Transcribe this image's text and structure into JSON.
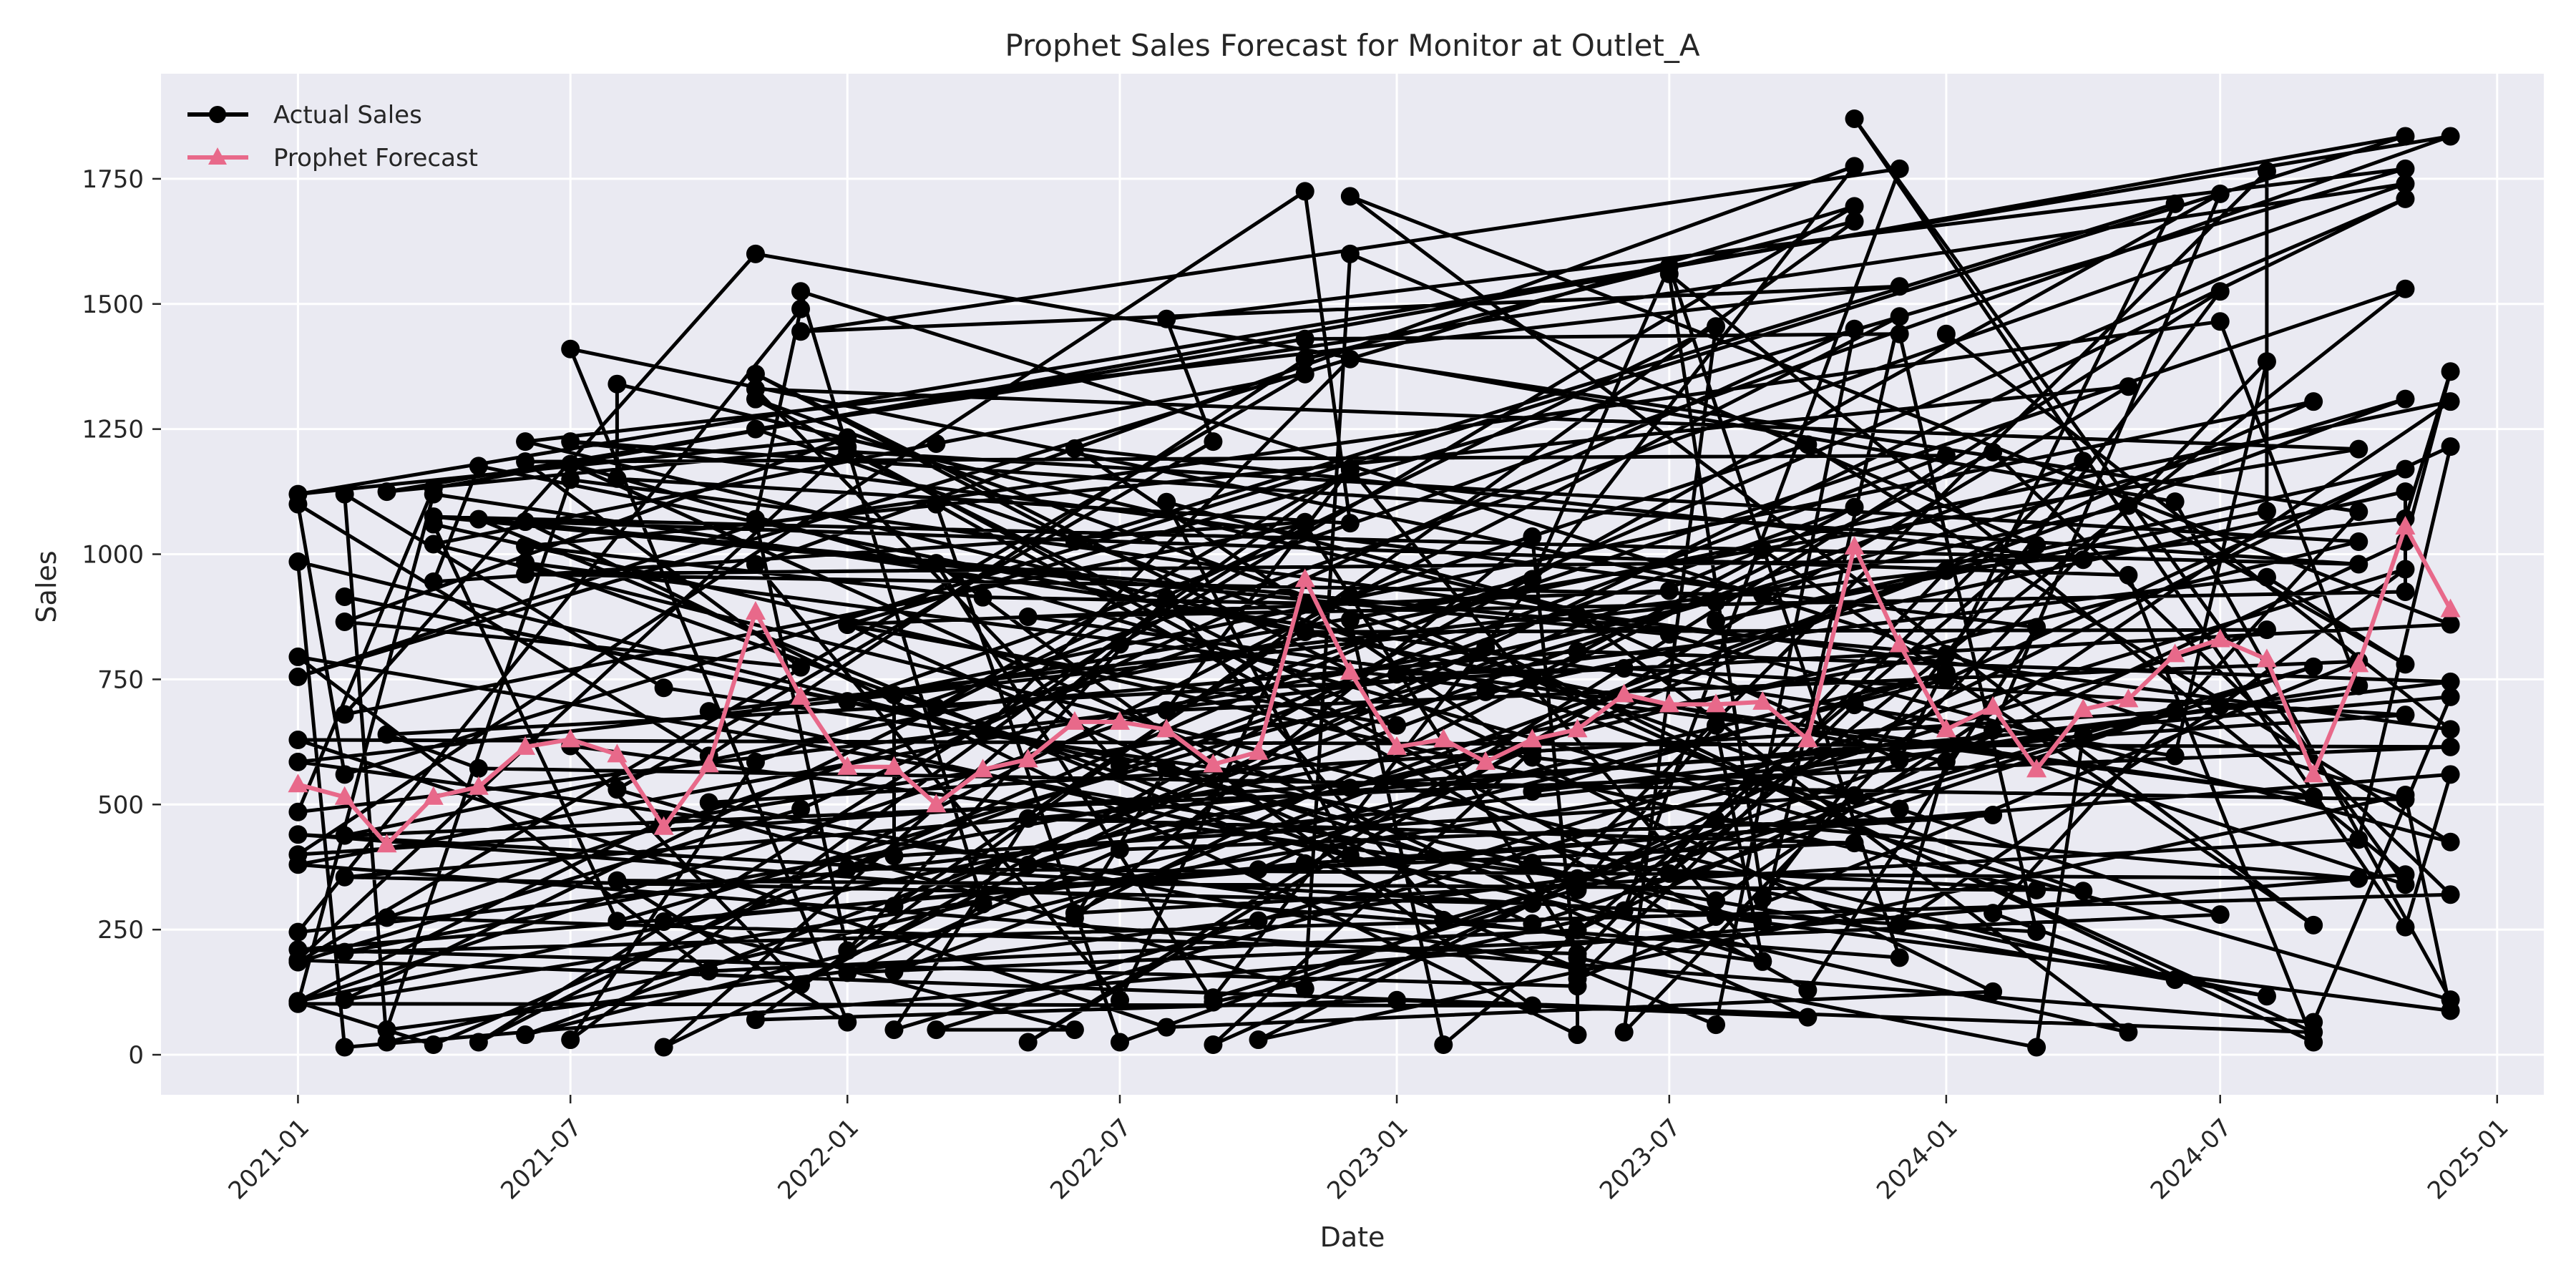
{
  "chart_data": {
    "type": "line",
    "title": "Prophet Sales Forecast for Monitor at Outlet_A",
    "xlabel": "Date",
    "ylabel": "Sales",
    "xlim": [
      "2020-10-02",
      "2025-02-01"
    ],
    "ylim": [
      -80,
      1960
    ],
    "x_ticks": [
      "2021-01",
      "2021-07",
      "2022-01",
      "2022-07",
      "2023-01",
      "2023-07",
      "2024-01",
      "2024-07",
      "2025-01"
    ],
    "y_ticks": [
      0,
      250,
      500,
      750,
      1000,
      1250,
      1500,
      1750
    ],
    "grid": true,
    "legend_position": "upper-left",
    "colors": {
      "actual": "#000000",
      "forecast": "#e8698a",
      "background": "#eaeaf2",
      "grid": "#ffffff"
    },
    "series": [
      {
        "name": "Actual Sales",
        "marker": "circle",
        "seed": 20210101,
        "extra_segments": 180,
        "points": [
          {
            "x": "2021-01-01",
            "y": 1120
          },
          {
            "x": "2021-01-01",
            "y": 1100
          },
          {
            "x": "2021-01-01",
            "y": 985
          },
          {
            "x": "2021-01-01",
            "y": 795
          },
          {
            "x": "2021-01-01",
            "y": 755
          },
          {
            "x": "2021-01-01",
            "y": 585
          },
          {
            "x": "2021-01-01",
            "y": 485
          },
          {
            "x": "2021-01-01",
            "y": 440
          },
          {
            "x": "2021-01-01",
            "y": 400
          },
          {
            "x": "2021-01-01",
            "y": 380
          },
          {
            "x": "2021-01-01",
            "y": 245
          },
          {
            "x": "2021-01-01",
            "y": 210
          },
          {
            "x": "2021-01-01",
            "y": 185
          },
          {
            "x": "2021-01-01",
            "y": 105
          },
          {
            "x": "2021-02-01",
            "y": 1120
          },
          {
            "x": "2021-02-01",
            "y": 915
          },
          {
            "x": "2021-02-01",
            "y": 865
          },
          {
            "x": "2021-02-01",
            "y": 680
          },
          {
            "x": "2021-02-01",
            "y": 560
          },
          {
            "x": "2021-02-01",
            "y": 355
          },
          {
            "x": "2021-02-01",
            "y": 205
          },
          {
            "x": "2021-02-01",
            "y": 110
          },
          {
            "x": "2021-02-01",
            "y": 15
          },
          {
            "x": "2021-03-01",
            "y": 1125
          },
          {
            "x": "2021-03-01",
            "y": 50
          },
          {
            "x": "2021-03-01",
            "y": 25
          },
          {
            "x": "2021-04-01",
            "y": 1120
          },
          {
            "x": "2021-04-01",
            "y": 1075
          },
          {
            "x": "2021-04-01",
            "y": 1060
          },
          {
            "x": "2021-04-01",
            "y": 1020
          },
          {
            "x": "2021-04-01",
            "y": 945
          },
          {
            "x": "2021-04-01",
            "y": 20
          },
          {
            "x": "2021-05-01",
            "y": 1070
          },
          {
            "x": "2021-05-01",
            "y": 25
          },
          {
            "x": "2021-06-01",
            "y": 1225
          },
          {
            "x": "2021-06-01",
            "y": 1185
          },
          {
            "x": "2021-06-01",
            "y": 1065
          },
          {
            "x": "2021-06-01",
            "y": 960
          },
          {
            "x": "2021-06-01",
            "y": 40
          },
          {
            "x": "2021-07-01",
            "y": 1410
          },
          {
            "x": "2021-07-01",
            "y": 1225
          },
          {
            "x": "2021-07-01",
            "y": 1180
          },
          {
            "x": "2021-07-01",
            "y": 30
          },
          {
            "x": "2021-08-01",
            "y": 1340
          },
          {
            "x": "2021-09-01",
            "y": 15
          },
          {
            "x": "2021-11-01",
            "y": 1600
          },
          {
            "x": "2021-11-01",
            "y": 1360
          },
          {
            "x": "2021-11-01",
            "y": 1330
          },
          {
            "x": "2021-11-01",
            "y": 1310
          },
          {
            "x": "2021-11-01",
            "y": 1250
          },
          {
            "x": "2021-11-01",
            "y": 70
          },
          {
            "x": "2021-12-01",
            "y": 1525
          },
          {
            "x": "2021-12-01",
            "y": 1490
          },
          {
            "x": "2021-12-01",
            "y": 1445
          },
          {
            "x": "2022-01-01",
            "y": 65
          },
          {
            "x": "2022-02-01",
            "y": 50
          },
          {
            "x": "2022-03-01",
            "y": 50
          },
          {
            "x": "2022-05-01",
            "y": 25
          },
          {
            "x": "2022-06-01",
            "y": 50
          },
          {
            "x": "2022-07-01",
            "y": 25
          },
          {
            "x": "2022-08-01",
            "y": 1470
          },
          {
            "x": "2022-08-01",
            "y": 55
          },
          {
            "x": "2022-09-01",
            "y": 20
          },
          {
            "x": "2022-10-01",
            "y": 30
          },
          {
            "x": "2022-11-01",
            "y": 1725
          },
          {
            "x": "2022-11-01",
            "y": 1430
          },
          {
            "x": "2022-11-01",
            "y": 1390
          },
          {
            "x": "2022-11-01",
            "y": 1360
          },
          {
            "x": "2022-12-01",
            "y": 1715
          },
          {
            "x": "2022-12-01",
            "y": 1600
          },
          {
            "x": "2022-12-01",
            "y": 1390
          },
          {
            "x": "2023-02-01",
            "y": 20
          },
          {
            "x": "2023-05-01",
            "y": 40
          },
          {
            "x": "2023-06-01",
            "y": 45
          },
          {
            "x": "2023-07-01",
            "y": 1575
          },
          {
            "x": "2023-07-01",
            "y": 1560
          },
          {
            "x": "2023-08-01",
            "y": 1455
          },
          {
            "x": "2023-08-01",
            "y": 60
          },
          {
            "x": "2023-10-01",
            "y": 75
          },
          {
            "x": "2023-11-01",
            "y": 1870
          },
          {
            "x": "2023-11-01",
            "y": 1775
          },
          {
            "x": "2023-11-01",
            "y": 1695
          },
          {
            "x": "2023-11-01",
            "y": 1665
          },
          {
            "x": "2023-11-01",
            "y": 1450
          },
          {
            "x": "2023-12-01",
            "y": 1770
          },
          {
            "x": "2023-12-01",
            "y": 1535
          },
          {
            "x": "2023-12-01",
            "y": 1475
          },
          {
            "x": "2023-12-01",
            "y": 1440
          },
          {
            "x": "2024-01-01",
            "y": 1440
          },
          {
            "x": "2024-03-01",
            "y": 15
          },
          {
            "x": "2024-05-01",
            "y": 1335
          },
          {
            "x": "2024-05-01",
            "y": 45
          },
          {
            "x": "2024-06-01",
            "y": 1700
          },
          {
            "x": "2024-06-01",
            "y": 150
          },
          {
            "x": "2024-07-01",
            "y": 1720
          },
          {
            "x": "2024-07-01",
            "y": 1525
          },
          {
            "x": "2024-07-01",
            "y": 1465
          },
          {
            "x": "2024-08-01",
            "y": 1765
          },
          {
            "x": "2024-08-01",
            "y": 1385
          },
          {
            "x": "2024-09-01",
            "y": 1305
          },
          {
            "x": "2024-09-01",
            "y": 65
          },
          {
            "x": "2024-09-01",
            "y": 45
          },
          {
            "x": "2024-09-01",
            "y": 25
          },
          {
            "x": "2024-10-01",
            "y": 1210
          },
          {
            "x": "2024-10-01",
            "y": 1085
          },
          {
            "x": "2024-10-01",
            "y": 1025
          },
          {
            "x": "2024-10-01",
            "y": 980
          },
          {
            "x": "2024-10-01",
            "y": 430
          },
          {
            "x": "2024-11-01",
            "y": 1835
          },
          {
            "x": "2024-11-01",
            "y": 1770
          },
          {
            "x": "2024-11-01",
            "y": 1740
          },
          {
            "x": "2024-11-01",
            "y": 1710
          },
          {
            "x": "2024-11-01",
            "y": 1530
          },
          {
            "x": "2024-11-01",
            "y": 1310
          },
          {
            "x": "2024-11-01",
            "y": 1170
          },
          {
            "x": "2024-11-01",
            "y": 970
          },
          {
            "x": "2024-11-01",
            "y": 925
          },
          {
            "x": "2024-11-01",
            "y": 780
          },
          {
            "x": "2024-11-01",
            "y": 510
          },
          {
            "x": "2024-11-01",
            "y": 360
          },
          {
            "x": "2024-11-01",
            "y": 340
          },
          {
            "x": "2024-11-01",
            "y": 255
          },
          {
            "x": "2024-12-01",
            "y": 1835
          },
          {
            "x": "2024-12-01",
            "y": 1365
          },
          {
            "x": "2024-12-01",
            "y": 1305
          },
          {
            "x": "2024-12-01",
            "y": 1215
          },
          {
            "x": "2024-12-01",
            "y": 860
          },
          {
            "x": "2024-12-01",
            "y": 745
          },
          {
            "x": "2024-12-01",
            "y": 715
          },
          {
            "x": "2024-12-01",
            "y": 650
          },
          {
            "x": "2024-12-01",
            "y": 615
          },
          {
            "x": "2024-12-01",
            "y": 560
          },
          {
            "x": "2024-12-01",
            "y": 425
          },
          {
            "x": "2024-12-01",
            "y": 320
          },
          {
            "x": "2024-12-01",
            "y": 110
          }
        ]
      },
      {
        "name": "Prophet Forecast",
        "marker": "triangle",
        "points": [
          {
            "x": "2021-01-01",
            "y": 540
          },
          {
            "x": "2021-02-01",
            "y": 515
          },
          {
            "x": "2021-03-01",
            "y": 420
          },
          {
            "x": "2021-04-01",
            "y": 515
          },
          {
            "x": "2021-05-01",
            "y": 535
          },
          {
            "x": "2021-06-01",
            "y": 615
          },
          {
            "x": "2021-07-01",
            "y": 630
          },
          {
            "x": "2021-08-01",
            "y": 600
          },
          {
            "x": "2021-09-01",
            "y": 455
          },
          {
            "x": "2021-10-01",
            "y": 580
          },
          {
            "x": "2021-11-01",
            "y": 885
          },
          {
            "x": "2021-12-01",
            "y": 715
          },
          {
            "x": "2022-01-01",
            "y": 575
          },
          {
            "x": "2022-02-01",
            "y": 575
          },
          {
            "x": "2022-03-01",
            "y": 500
          },
          {
            "x": "2022-04-01",
            "y": 570
          },
          {
            "x": "2022-05-01",
            "y": 590
          },
          {
            "x": "2022-06-01",
            "y": 665
          },
          {
            "x": "2022-07-01",
            "y": 665
          },
          {
            "x": "2022-08-01",
            "y": 650
          },
          {
            "x": "2022-09-01",
            "y": 580
          },
          {
            "x": "2022-10-01",
            "y": 605
          },
          {
            "x": "2022-11-01",
            "y": 950
          },
          {
            "x": "2022-12-01",
            "y": 765
          },
          {
            "x": "2023-01-01",
            "y": 615
          },
          {
            "x": "2023-02-01",
            "y": 630
          },
          {
            "x": "2023-03-01",
            "y": 585
          },
          {
            "x": "2023-04-01",
            "y": 630
          },
          {
            "x": "2023-05-01",
            "y": 650
          },
          {
            "x": "2023-06-01",
            "y": 720
          },
          {
            "x": "2023-07-01",
            "y": 700
          },
          {
            "x": "2023-08-01",
            "y": 700
          },
          {
            "x": "2023-09-01",
            "y": 705
          },
          {
            "x": "2023-10-01",
            "y": 630
          },
          {
            "x": "2023-11-01",
            "y": 1015
          },
          {
            "x": "2023-12-01",
            "y": 820
          },
          {
            "x": "2024-01-01",
            "y": 650
          },
          {
            "x": "2024-02-01",
            "y": 695
          },
          {
            "x": "2024-03-01",
            "y": 570
          },
          {
            "x": "2024-04-01",
            "y": 690
          },
          {
            "x": "2024-05-01",
            "y": 710
          },
          {
            "x": "2024-06-01",
            "y": 800
          },
          {
            "x": "2024-07-01",
            "y": 830
          },
          {
            "x": "2024-08-01",
            "y": 790
          },
          {
            "x": "2024-09-01",
            "y": 560
          },
          {
            "x": "2024-10-01",
            "y": 780
          },
          {
            "x": "2024-11-01",
            "y": 1055
          },
          {
            "x": "2024-12-01",
            "y": 890
          }
        ]
      }
    ]
  }
}
